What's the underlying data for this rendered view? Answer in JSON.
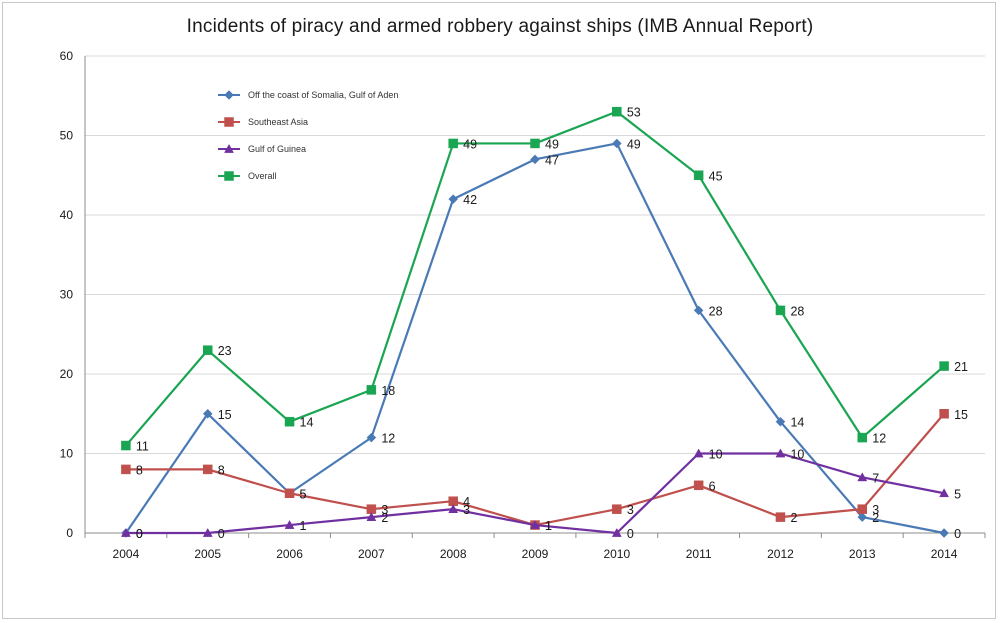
{
  "chart_data": {
    "type": "line",
    "title": "Incidents of piracy and armed robbery against ships (IMB Annual Report)",
    "xlabel": "",
    "ylabel": "",
    "x": [
      "2004",
      "2005",
      "2006",
      "2007",
      "2008",
      "2009",
      "2010",
      "2011",
      "2012",
      "2013",
      "2014"
    ],
    "ylim": [
      0,
      60
    ],
    "yticks": [
      0,
      10,
      20,
      30,
      40,
      50,
      60
    ],
    "grid": true,
    "legend": "top-left",
    "series": [
      {
        "name": "Off the coast of Somalia, Gulf of Aden",
        "color": "#4a7ab5",
        "marker": "diamond",
        "values": [
          0,
          15,
          5,
          12,
          42,
          47,
          49,
          28,
          14,
          2,
          0
        ]
      },
      {
        "name": "Southeast Asia",
        "color": "#c0504d",
        "marker": "square",
        "values": [
          8,
          8,
          5,
          3,
          4,
          1,
          3,
          6,
          2,
          3,
          15
        ]
      },
      {
        "name": "Gulf of Guinea",
        "color": "#7030a0",
        "marker": "triangle",
        "values": [
          0,
          0,
          1,
          2,
          3,
          1,
          0,
          10,
          10,
          7,
          5
        ]
      },
      {
        "name": "Overall",
        "color": "#1aa552",
        "marker": "square",
        "values": [
          11,
          23,
          14,
          18,
          49,
          49,
          53,
          45,
          28,
          12,
          21
        ]
      }
    ]
  }
}
